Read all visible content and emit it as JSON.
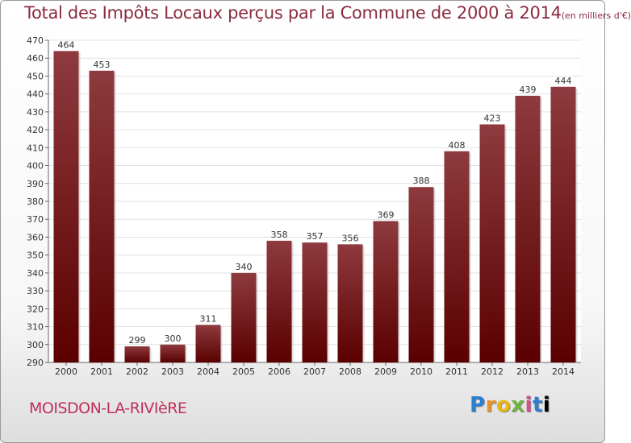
{
  "header": {
    "title": "Total des Impôts Locaux perçus par la Commune de 2000 à 2014",
    "subtitle": "(en milliers d'€)"
  },
  "footer": {
    "commune": "MOISDON-LA-RIVIèRE",
    "logo_letters": [
      "P",
      "r",
      "o",
      "x",
      "i",
      "t",
      "i"
    ]
  },
  "colors": {
    "bar_top": "#8e3a3e",
    "bar_bottom": "#5a0000",
    "title": "#8b2c3f",
    "commune": "#c0305a"
  },
  "chart_data": {
    "type": "bar",
    "title": "Total des Impôts Locaux perçus par la Commune de 2000 à 2014 (en milliers d'€)",
    "xlabel": "",
    "ylabel": "",
    "categories": [
      "2000",
      "2001",
      "2002",
      "2003",
      "2004",
      "2005",
      "2006",
      "2007",
      "2008",
      "2009",
      "2010",
      "2011",
      "2012",
      "2013",
      "2014"
    ],
    "values": [
      464,
      453,
      299,
      300,
      311,
      340,
      358,
      357,
      356,
      369,
      388,
      408,
      423,
      439,
      444
    ],
    "ylim": [
      290,
      470
    ],
    "yticks": [
      290,
      300,
      310,
      320,
      330,
      340,
      350,
      360,
      370,
      380,
      390,
      400,
      410,
      420,
      430,
      440,
      450,
      460,
      470
    ],
    "grid": true,
    "data_labels": true
  }
}
